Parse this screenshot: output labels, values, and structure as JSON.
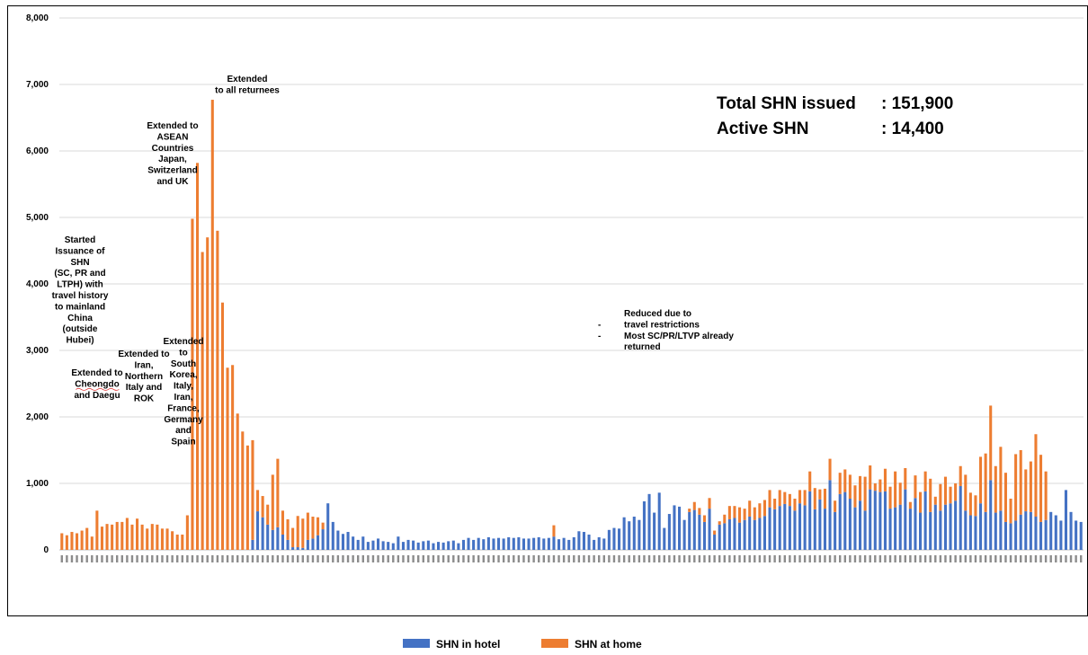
{
  "chart_data": {
    "type": "bar",
    "stacked": true,
    "y_axis": {
      "range": [
        0,
        8000
      ],
      "tick_labels": [
        "0",
        "1,000",
        "2,000",
        "3,000",
        "4,000",
        "5,000",
        "6,000",
        "7,000",
        "8,000"
      ]
    },
    "grid": "horizontal",
    "legend_position": "bottom-center",
    "series": [
      {
        "name": "SHN in hotel",
        "color": "#4472C4",
        "values": [
          0,
          0,
          0,
          0,
          0,
          0,
          0,
          0,
          0,
          0,
          0,
          0,
          0,
          0,
          0,
          0,
          0,
          0,
          0,
          0,
          0,
          0,
          0,
          0,
          0,
          0,
          0,
          0,
          0,
          0,
          0,
          0,
          0,
          0,
          0,
          0,
          0,
          0,
          150,
          580,
          490,
          380,
          300,
          340,
          230,
          150,
          40,
          40,
          30,
          150,
          170,
          220,
          310,
          700,
          420,
          290,
          240,
          270,
          200,
          150,
          200,
          120,
          140,
          170,
          130,
          120,
          100,
          200,
          120,
          150,
          140,
          110,
          130,
          140,
          100,
          120,
          110,
          130,
          140,
          100,
          150,
          180,
          150,
          180,
          160,
          190,
          170,
          180,
          170,
          190,
          180,
          190,
          170,
          170,
          180,
          190,
          170,
          180,
          200,
          160,
          180,
          150,
          190,
          280,
          270,
          230,
          150,
          190,
          170,
          300,
          330,
          320,
          490,
          430,
          500,
          450,
          730,
          840,
          560,
          860,
          330,
          540,
          670,
          650,
          450,
          570,
          600,
          530,
          420,
          620,
          230,
          380,
          400,
          460,
          480,
          410,
          450,
          500,
          450,
          480,
          510,
          640,
          610,
          660,
          690,
          660,
          590,
          700,
          670,
          880,
          610,
          760,
          620,
          1050,
          570,
          840,
          870,
          770,
          640,
          740,
          590,
          910,
          890,
          870,
          880,
          620,
          640,
          680,
          910,
          620,
          780,
          560,
          880,
          570,
          680,
          590,
          680,
          700,
          740,
          960,
          590,
          520,
          510,
          700,
          570,
          1050,
          560,
          590,
          420,
          400,
          440,
          530,
          580,
          570,
          500,
          420,
          450,
          570,
          520,
          440,
          900,
          570,
          440,
          420
        ]
      },
      {
        "name": "SHN at home",
        "color": "#ED7D31",
        "values": [
          250,
          220,
          270,
          250,
          290,
          330,
          200,
          590,
          350,
          390,
          380,
          420,
          420,
          480,
          380,
          470,
          380,
          320,
          390,
          380,
          320,
          320,
          280,
          230,
          230,
          520,
          4980,
          5820,
          4480,
          4700,
          6770,
          4800,
          3720,
          2740,
          2780,
          2050,
          1780,
          1570,
          1500,
          320,
          320,
          300,
          830,
          1030,
          360,
          310,
          290,
          470,
          440,
          410,
          330,
          270,
          100,
          0,
          0,
          0,
          0,
          0,
          0,
          0,
          0,
          0,
          0,
          0,
          0,
          0,
          0,
          0,
          0,
          0,
          0,
          0,
          0,
          0,
          0,
          0,
          0,
          0,
          0,
          0,
          0,
          0,
          0,
          0,
          0,
          0,
          0,
          0,
          0,
          0,
          0,
          0,
          0,
          0,
          0,
          0,
          0,
          0,
          170,
          0,
          0,
          0,
          0,
          0,
          0,
          0,
          0,
          0,
          0,
          0,
          0,
          0,
          0,
          0,
          0,
          0,
          0,
          0,
          0,
          0,
          0,
          0,
          0,
          0,
          0,
          50,
          120,
          100,
          100,
          160,
          60,
          50,
          130,
          200,
          180,
          230,
          170,
          240,
          190,
          220,
          240,
          260,
          160,
          240,
          180,
          180,
          180,
          200,
          230,
          300,
          320,
          150,
          300,
          320,
          170,
          320,
          340,
          360,
          330,
          370,
          510,
          360,
          110,
          190,
          340,
          330,
          540,
          330,
          320,
          100,
          340,
          310,
          300,
          500,
          120,
          400,
          420,
          250,
          260,
          300,
          540,
          340,
          310,
          700,
          880,
          1120,
          700,
          960,
          740,
          370,
          1000,
          970,
          630,
          760,
          1240,
          1010,
          730
        ]
      }
    ],
    "annotations": [
      {
        "lines": [
          "Started",
          "Issuance of",
          "SHN",
          "(SC, PR and",
          "LTPH) with",
          "travel history",
          "to mainland",
          "China",
          "(outside",
          "Hubei)"
        ]
      },
      {
        "lines": [
          "Extended to",
          "Cheongdo",
          "and Daegu"
        ]
      },
      {
        "lines": [
          "Extended to",
          "Iran,",
          "Northern",
          "Italy and",
          "ROK"
        ]
      },
      {
        "lines": [
          "Extended",
          "to",
          "South",
          "Korea,",
          "Italy,",
          "Iran,",
          "France,",
          "Germany",
          "and",
          "Spain"
        ]
      },
      {
        "lines": [
          "Extended to",
          "ASEAN",
          "Countries",
          "Japan,",
          "Switzerland",
          "and UK"
        ]
      },
      {
        "lines": [
          "Extended",
          "to all returnees"
        ]
      },
      {
        "lines": [
          "Reduced due to",
          "travel restrictions",
          "Most SC/PR/LTVP already",
          "returned"
        ],
        "bullets": [
          "-",
          "-"
        ]
      }
    ],
    "summary": {
      "label1": "Total SHN issued",
      "value1": ": 151,900",
      "label2": "Active SHN",
      "value2": ": 14,400"
    }
  }
}
